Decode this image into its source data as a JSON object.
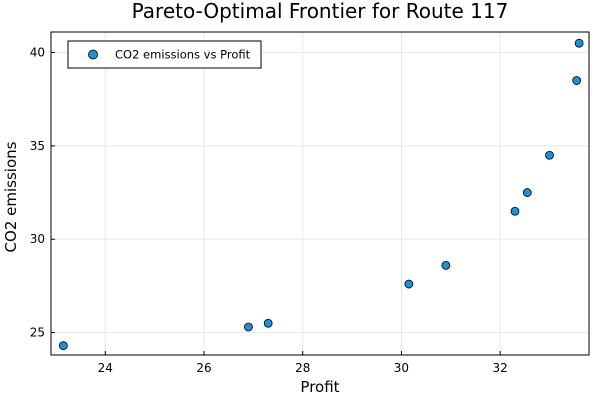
{
  "chart_data": {
    "type": "scatter",
    "title": "Pareto-Optimal Frontier for Route 117",
    "xlabel": "Profit",
    "ylabel": "CO2 emissions",
    "xlim": [
      22.9,
      33.8
    ],
    "ylim": [
      23.8,
      41.1
    ],
    "xticks": [
      24,
      26,
      28,
      30,
      32
    ],
    "yticks": [
      25,
      30,
      35,
      40
    ],
    "grid": true,
    "legend": "top-left",
    "series": [
      {
        "name": "CO2 emissions vs Profit",
        "color": "#1e90d8",
        "x": [
          23.15,
          26.9,
          27.3,
          30.15,
          30.9,
          32.3,
          32.55,
          33.0,
          33.55,
          33.6
        ],
        "y": [
          24.3,
          25.3,
          25.5,
          27.6,
          28.6,
          31.5,
          32.5,
          34.5,
          38.5,
          40.5
        ]
      }
    ]
  }
}
